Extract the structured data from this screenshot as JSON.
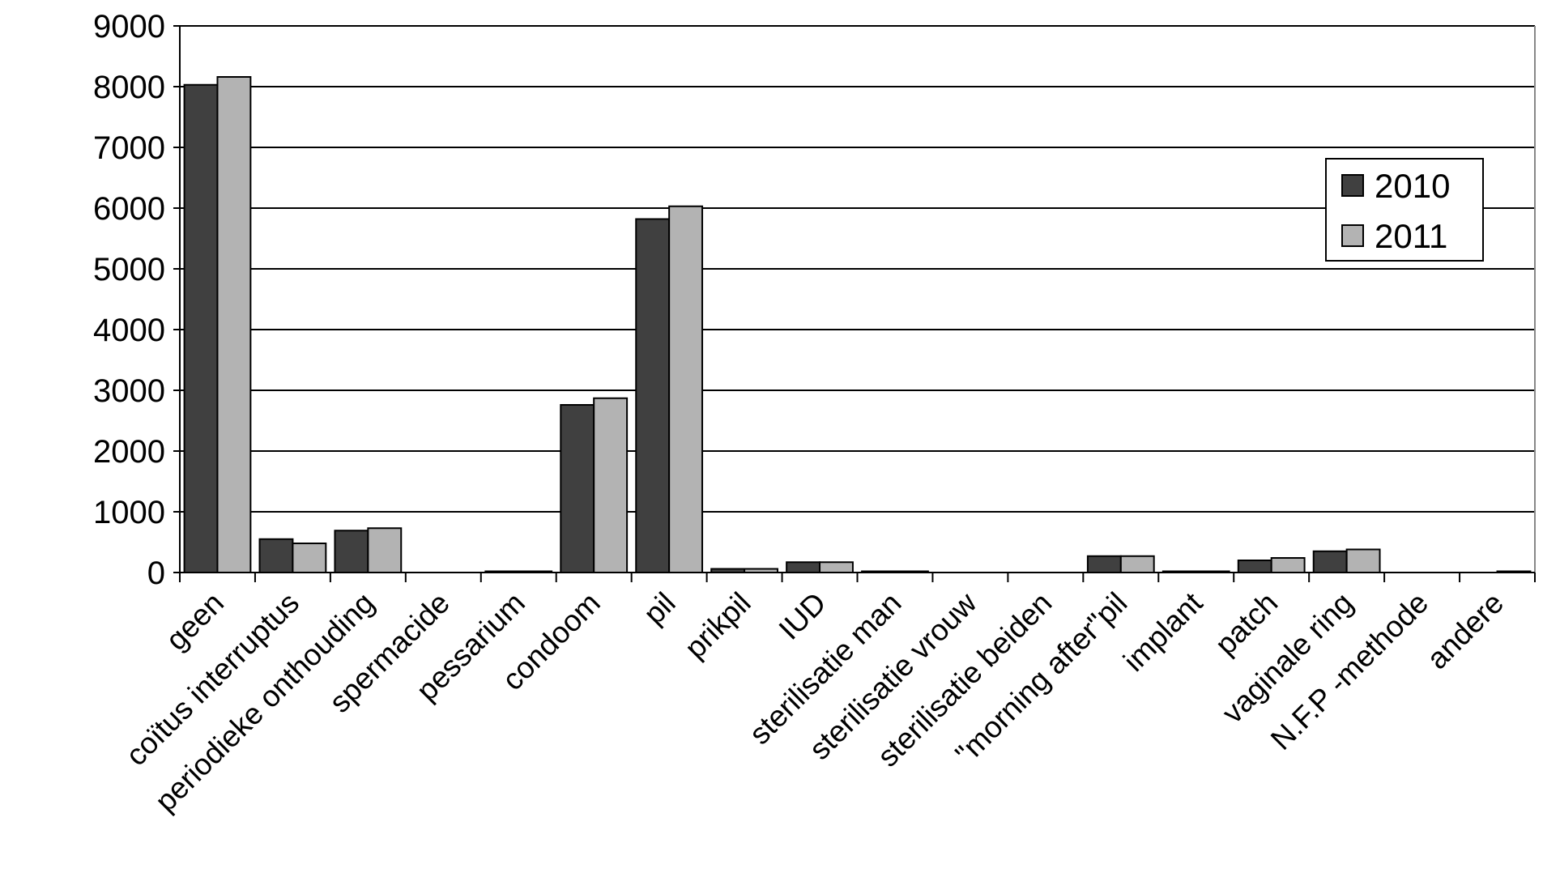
{
  "chart_data": {
    "type": "bar",
    "categories": [
      "geen",
      "coïtus interruptus",
      "periodieke onthouding",
      "spermacide",
      "pessarium",
      "condoom",
      "pil",
      "prikpil",
      "IUD",
      "sterilisatie man",
      "sterilisatie vrouw",
      "sterilisatie beiden",
      "\"morning after\"pil",
      "implant",
      "patch",
      "vaginale ring",
      "N.F.P -methode",
      "andere"
    ],
    "series": [
      {
        "name": "2010",
        "color": "#404040",
        "values": [
          8030,
          550,
          690,
          0,
          20,
          2760,
          5820,
          60,
          170,
          20,
          0,
          0,
          270,
          20,
          200,
          350,
          0,
          0
        ]
      },
      {
        "name": "2011",
        "color": "#b3b3b3",
        "values": [
          8160,
          480,
          730,
          0,
          20,
          2870,
          6030,
          60,
          170,
          20,
          0,
          0,
          270,
          20,
          240,
          380,
          0,
          20
        ]
      }
    ],
    "ylim": [
      0,
      9000
    ],
    "yticks": [
      0,
      1000,
      2000,
      3000,
      4000,
      5000,
      6000,
      7000,
      8000,
      9000
    ],
    "grid": true,
    "legend": "upper right"
  }
}
